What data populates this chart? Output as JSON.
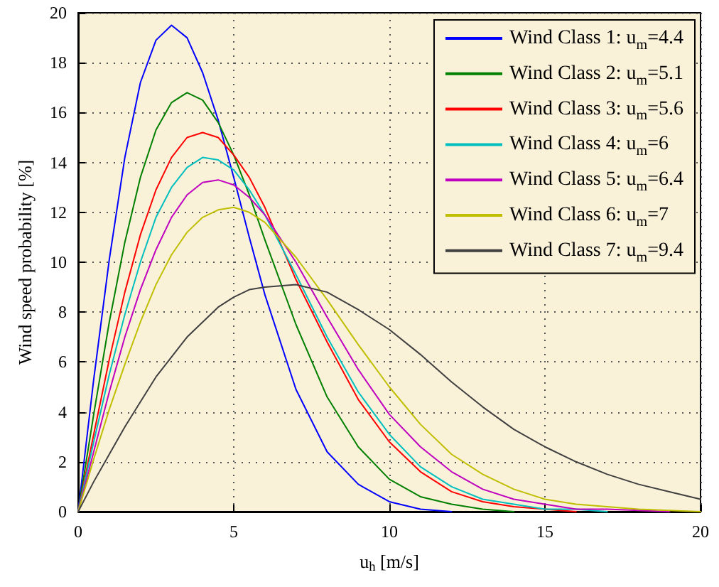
{
  "chart_data": {
    "type": "line",
    "xlabel": "u$_{h}$ [m/s]",
    "ylabel": "Wind speed probability [%]",
    "x": [
      0,
      0.5,
      1,
      1.5,
      2,
      2.5,
      3,
      3.5,
      4,
      4.5,
      5,
      5.5,
      6,
      7,
      8,
      9,
      10,
      11,
      12,
      13,
      14,
      15,
      16,
      17,
      18,
      19,
      20
    ],
    "series": [
      {
        "name": "Wind Class 1: u$_{m}$=4.4",
        "color": "#0000ff",
        "values": [
          0,
          5.3,
          10.1,
          14.2,
          17.2,
          18.9,
          19.5,
          19.0,
          17.6,
          15.7,
          13.4,
          11.0,
          8.7,
          4.9,
          2.4,
          1.1,
          0.4,
          0.1,
          0,
          null,
          null,
          null,
          null,
          null,
          null,
          null,
          null
        ]
      },
      {
        "name": "Wind Class 2: u$_{m}$=5.1",
        "color": "#008000",
        "values": [
          0,
          3.9,
          7.6,
          10.8,
          13.4,
          15.3,
          16.4,
          16.8,
          16.5,
          15.6,
          14.3,
          12.7,
          10.9,
          7.5,
          4.6,
          2.6,
          1.3,
          0.6,
          0.3,
          0.1,
          0,
          null,
          null,
          null,
          null,
          null,
          null
        ]
      },
      {
        "name": "Wind Class 3: u$_{m}$=5.6",
        "color": "#ff0000",
        "values": [
          0,
          3.1,
          6.1,
          8.8,
          11.1,
          12.9,
          14.2,
          15.0,
          15.2,
          15.0,
          14.3,
          13.4,
          12.2,
          9.3,
          6.8,
          4.5,
          2.8,
          1.6,
          0.8,
          0.4,
          0.2,
          0.1,
          0,
          null,
          null,
          null,
          null
        ]
      },
      {
        "name": "Wind Class 4: u$_{m}$=6",
        "color": "#00bfbf",
        "values": [
          0,
          2.8,
          5.5,
          7.9,
          10.0,
          11.8,
          13.0,
          13.8,
          14.2,
          14.1,
          13.7,
          12.9,
          11.9,
          9.5,
          7.0,
          4.8,
          3.1,
          1.8,
          1.0,
          0.5,
          0.3,
          0.1,
          0.1,
          0,
          null,
          null,
          null
        ]
      },
      {
        "name": "Wind Class 5: u$_{m}$=6.4",
        "color": "#bf00bf",
        "values": [
          0,
          2.4,
          4.8,
          7.0,
          8.9,
          10.5,
          11.8,
          12.7,
          13.2,
          13.3,
          13.1,
          12.6,
          11.9,
          10.0,
          7.8,
          5.7,
          3.9,
          2.6,
          1.6,
          0.9,
          0.5,
          0.3,
          0.1,
          0.1,
          0.05,
          0,
          null
        ]
      },
      {
        "name": "Wind Class 6: u$_{m}$=7",
        "color": "#bfbf00",
        "values": [
          0,
          2.1,
          4.1,
          5.9,
          7.6,
          9.1,
          10.3,
          11.2,
          11.8,
          12.1,
          12.2,
          12.0,
          11.6,
          10.2,
          8.5,
          6.7,
          5.0,
          3.5,
          2.3,
          1.5,
          0.9,
          0.5,
          0.3,
          0.2,
          0.1,
          0.05,
          0
        ]
      },
      {
        "name": "Wind Class 7: u$_{m}$=9.4",
        "color": "#404040",
        "values": [
          0,
          1.2,
          2.3,
          3.4,
          4.4,
          5.4,
          6.2,
          7.0,
          7.6,
          8.2,
          8.6,
          8.9,
          9.0,
          9.1,
          8.8,
          8.1,
          7.3,
          6.3,
          5.2,
          4.2,
          3.3,
          2.6,
          2.0,
          1.5,
          1.1,
          0.8,
          0.5
        ]
      }
    ],
    "xlim": [
      0,
      20
    ],
    "xticks": [
      0,
      5,
      10,
      15,
      20
    ],
    "ylim": [
      0,
      20
    ],
    "yticks": [
      0,
      2,
      4,
      6,
      8,
      10,
      12,
      14,
      16,
      18,
      20
    ],
    "grid": true,
    "legend": "top right"
  }
}
